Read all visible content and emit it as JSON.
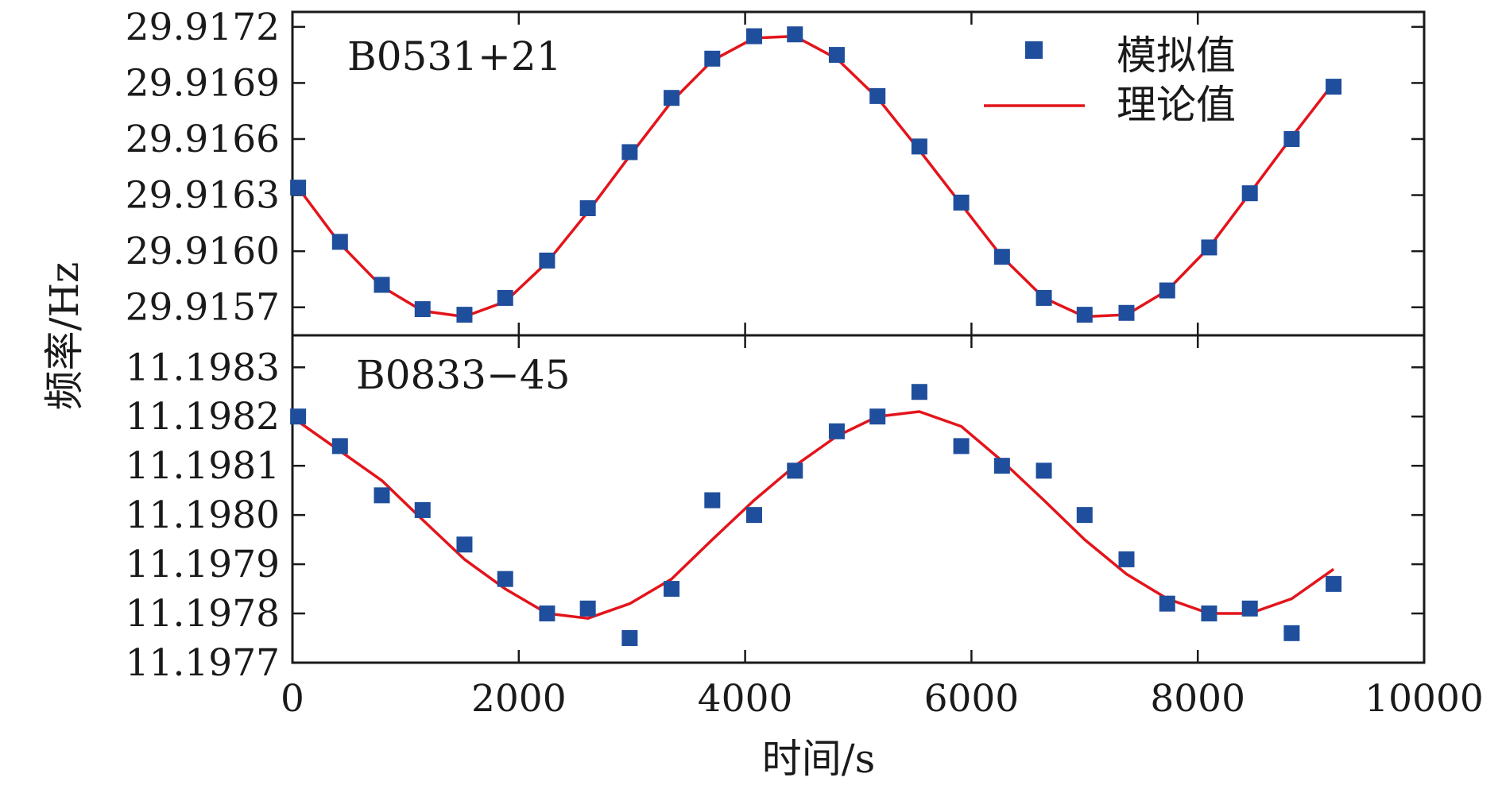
{
  "figure": {
    "x_axis_label": "时间/s",
    "y_axis_label": "频率/Hz",
    "legend": {
      "simulated_label": "模拟值",
      "theoretical_label": "理论值"
    }
  },
  "colors": {
    "simulated": "#1f4e9c",
    "theoretical": "#e3141b",
    "axes": "#1a1a1a"
  },
  "chart_data": [
    {
      "type": "scatter",
      "panel": "top",
      "label": "B0531+21",
      "xlim": [
        0,
        10000
      ],
      "ylim": [
        29.91555,
        29.91728
      ],
      "x_ticks": [
        0,
        2000,
        4000,
        6000,
        8000,
        10000
      ],
      "y_ticks": [
        "29.9157",
        "29.9160",
        "29.9163",
        "29.9166",
        "29.9169",
        "29.9172"
      ],
      "legend_position": "top-right",
      "grid": false,
      "series": [
        {
          "name": "模拟值",
          "kind": "scatter",
          "x": [
            50,
            420,
            790,
            1150,
            1520,
            1880,
            2250,
            2610,
            2980,
            3350,
            3710,
            4080,
            4440,
            4810,
            5170,
            5540,
            5910,
            6270,
            6640,
            7000,
            7370,
            7730,
            8100,
            8460,
            8830,
            9200
          ],
          "y": [
            29.91634,
            29.91605,
            29.91582,
            29.91569,
            29.91566,
            29.91575,
            29.91595,
            29.91623,
            29.91653,
            29.91682,
            29.91703,
            29.91715,
            29.91716,
            29.91705,
            29.91683,
            29.91656,
            29.91626,
            29.91597,
            29.91575,
            29.91566,
            29.91567,
            29.91579,
            29.91602,
            29.91631,
            29.9166,
            29.91688
          ]
        },
        {
          "name": "理论值",
          "kind": "line",
          "x": [
            50,
            420,
            790,
            1150,
            1520,
            1880,
            2250,
            2610,
            2980,
            3350,
            3710,
            4080,
            4440,
            4810,
            5170,
            5540,
            5910,
            6270,
            6640,
            7000,
            7370,
            7730,
            8100,
            8460,
            8830,
            9200
          ],
          "y": [
            29.91634,
            29.91604,
            29.91581,
            29.91568,
            29.91565,
            29.91573,
            29.91594,
            29.91621,
            29.91651,
            29.9168,
            29.91702,
            29.91714,
            29.91715,
            29.91703,
            29.91682,
            29.91654,
            29.91625,
            29.91597,
            29.91575,
            29.91565,
            29.91566,
            29.91579,
            29.91602,
            29.91631,
            29.91661,
            29.9169
          ]
        }
      ]
    },
    {
      "type": "scatter",
      "panel": "bottom",
      "label": "B0833−45",
      "xlim": [
        0,
        10000
      ],
      "ylim": [
        11.1977,
        11.198365
      ],
      "x_ticks": [
        0,
        2000,
        4000,
        6000,
        8000,
        10000
      ],
      "y_ticks": [
        "11.1977",
        "11.1978",
        "11.1979",
        "11.1980",
        "11.1981",
        "11.1982",
        "11.1983"
      ],
      "grid": false,
      "series": [
        {
          "name": "模拟值",
          "kind": "scatter",
          "x": [
            50,
            420,
            790,
            1150,
            1520,
            1880,
            2250,
            2610,
            2980,
            3350,
            3710,
            4080,
            4440,
            4810,
            5170,
            5540,
            5910,
            6270,
            6640,
            7000,
            7370,
            7730,
            8100,
            8460,
            8830,
            9200
          ],
          "y": [
            11.1982,
            11.19814,
            11.19804,
            11.19801,
            11.19794,
            11.19787,
            11.1978,
            11.19781,
            11.19775,
            11.19785,
            11.19803,
            11.198,
            11.19809,
            11.19817,
            11.1982,
            11.19825,
            11.19814,
            11.1981,
            11.19809,
            11.198,
            11.19791,
            11.19782,
            11.1978,
            11.19781,
            11.19776,
            11.19786
          ]
        },
        {
          "name": "理论值",
          "kind": "line",
          "x": [
            50,
            420,
            790,
            1150,
            1520,
            1880,
            2250,
            2610,
            2980,
            3350,
            3710,
            4080,
            4440,
            4810,
            5170,
            5540,
            5910,
            6270,
            6640,
            7000,
            7370,
            7730,
            8100,
            8460,
            8830,
            9200
          ],
          "y": [
            11.19819,
            11.19813,
            11.19807,
            11.19799,
            11.19791,
            11.19785,
            11.1978,
            11.19779,
            11.19782,
            11.19787,
            11.19795,
            11.19803,
            11.1981,
            11.19816,
            11.1982,
            11.19821,
            11.19818,
            11.19811,
            11.19803,
            11.19795,
            11.19788,
            11.19783,
            11.1978,
            11.1978,
            11.19783,
            11.19789
          ]
        }
      ]
    }
  ]
}
